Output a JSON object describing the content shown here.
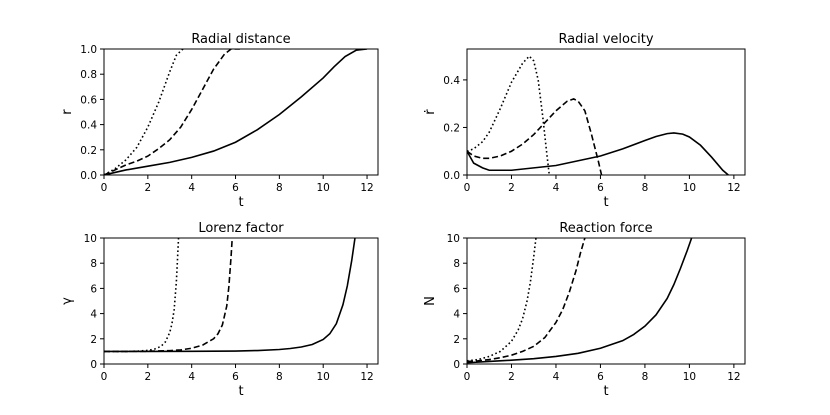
{
  "chart_data": [
    {
      "type": "line",
      "title": "Radial distance",
      "xlabel": "t",
      "ylabel": "r",
      "xlim": [
        0,
        12.5
      ],
      "ylim": [
        0,
        1.0
      ],
      "xticks": [
        "0",
        "2",
        "4",
        "6",
        "8",
        "10",
        "12"
      ],
      "yticks": [
        "0.0",
        "0.2",
        "0.4",
        "0.6",
        "0.8",
        "1.0"
      ],
      "series": [
        {
          "name": "solid",
          "dash": "solid",
          "x": [
            0,
            1,
            2,
            3,
            4,
            5,
            6,
            7,
            8,
            9,
            10,
            10.5,
            11,
            11.5,
            12
          ],
          "y": [
            0,
            0.04,
            0.07,
            0.1,
            0.14,
            0.19,
            0.26,
            0.36,
            0.48,
            0.62,
            0.77,
            0.86,
            0.94,
            0.99,
            1.0
          ]
        },
        {
          "name": "dashed",
          "dash": "dashed",
          "x": [
            0,
            0.5,
            1,
            1.5,
            2,
            2.5,
            3,
            3.5,
            4,
            4.5,
            5,
            5.5,
            5.8,
            6.2
          ],
          "y": [
            0,
            0.04,
            0.08,
            0.11,
            0.15,
            0.21,
            0.28,
            0.38,
            0.52,
            0.68,
            0.84,
            0.96,
            1.0,
            1.0
          ]
        },
        {
          "name": "dotted",
          "dash": "dotted",
          "x": [
            0,
            0.5,
            1,
            1.5,
            2,
            2.5,
            3,
            3.3,
            3.6
          ],
          "y": [
            0,
            0.05,
            0.12,
            0.22,
            0.38,
            0.58,
            0.82,
            0.95,
            1.0
          ]
        }
      ]
    },
    {
      "type": "line",
      "title": "Radial velocity",
      "xlabel": "t",
      "ylabel": "ṙ",
      "xlim": [
        0,
        12.5
      ],
      "ylim": [
        0,
        0.53
      ],
      "xticks": [
        "0",
        "2",
        "4",
        "6",
        "8",
        "10",
        "12"
      ],
      "yticks": [
        "0.0",
        "0.2",
        "0.4"
      ],
      "series": [
        {
          "name": "solid",
          "dash": "solid",
          "x": [
            0,
            0.3,
            0.7,
            1,
            1.5,
            2,
            3,
            4,
            5,
            6,
            7,
            8,
            8.5,
            9,
            9.3,
            9.7,
            10,
            10.5,
            11,
            11.5,
            11.75
          ],
          "y": [
            0.1,
            0.05,
            0.03,
            0.02,
            0.02,
            0.02,
            0.03,
            0.04,
            0.06,
            0.08,
            0.11,
            0.145,
            0.162,
            0.174,
            0.177,
            0.172,
            0.16,
            0.125,
            0.075,
            0.02,
            0
          ]
        },
        {
          "name": "dashed",
          "dash": "dashed",
          "x": [
            0,
            0.3,
            0.7,
            1,
            1.5,
            2,
            2.5,
            3,
            3.5,
            4,
            4.5,
            4.8,
            5,
            5.3,
            5.6,
            5.9,
            6.05
          ],
          "y": [
            0.1,
            0.08,
            0.07,
            0.07,
            0.08,
            0.1,
            0.13,
            0.17,
            0.22,
            0.27,
            0.31,
            0.32,
            0.31,
            0.27,
            0.17,
            0.06,
            0
          ]
        },
        {
          "name": "dotted",
          "dash": "dotted",
          "x": [
            0,
            0.3,
            0.7,
            1,
            1.5,
            2,
            2.5,
            2.8,
            3,
            3.2,
            3.4,
            3.6,
            3.7
          ],
          "y": [
            0.1,
            0.11,
            0.14,
            0.18,
            0.28,
            0.39,
            0.47,
            0.5,
            0.48,
            0.4,
            0.25,
            0.08,
            0
          ]
        }
      ]
    },
    {
      "type": "line",
      "title": "Lorenz factor",
      "xlabel": "t",
      "ylabel": "γ",
      "xlim": [
        0,
        12.5
      ],
      "ylim": [
        0,
        10
      ],
      "xticks": [
        "0",
        "2",
        "4",
        "6",
        "8",
        "10",
        "12"
      ],
      "yticks": [
        "0",
        "2",
        "4",
        "6",
        "8",
        "10"
      ],
      "series": [
        {
          "name": "solid",
          "dash": "solid",
          "x": [
            0,
            2,
            4,
            6,
            7,
            8,
            8.5,
            9,
            9.5,
            10,
            10.3,
            10.6,
            10.9,
            11.1,
            11.3,
            11.4,
            11.45
          ],
          "y": [
            1,
            1,
            1.01,
            1.03,
            1.07,
            1.15,
            1.23,
            1.35,
            1.55,
            1.95,
            2.4,
            3.2,
            4.7,
            6.2,
            8.2,
            9.4,
            10
          ]
        },
        {
          "name": "dashed",
          "dash": "dashed",
          "x": [
            0,
            1,
            2,
            3,
            3.5,
            4,
            4.5,
            5,
            5.2,
            5.4,
            5.6,
            5.7,
            5.8,
            5.85
          ],
          "y": [
            1,
            1,
            1.01,
            1.06,
            1.12,
            1.25,
            1.5,
            2.0,
            2.4,
            3.1,
            4.6,
            6.2,
            8.6,
            10
          ]
        },
        {
          "name": "dotted",
          "dash": "dotted",
          "x": [
            0,
            1,
            1.5,
            2,
            2.3,
            2.6,
            2.8,
            3.0,
            3.1,
            3.2,
            3.3,
            3.35,
            3.4
          ],
          "y": [
            1,
            1,
            1.02,
            1.08,
            1.18,
            1.4,
            1.75,
            2.5,
            3.2,
            4.3,
            6.5,
            8.2,
            10
          ]
        }
      ]
    },
    {
      "type": "line",
      "title": "Reaction force",
      "xlabel": "t",
      "ylabel": "N",
      "xlim": [
        0,
        12.5
      ],
      "ylim": [
        0,
        10
      ],
      "xticks": [
        "0",
        "2",
        "4",
        "6",
        "8",
        "10",
        "12"
      ],
      "yticks": [
        "0",
        "2",
        "4",
        "6",
        "8",
        "10"
      ],
      "series": [
        {
          "name": "solid",
          "dash": "solid",
          "x": [
            0,
            1,
            2,
            3,
            4,
            5,
            6,
            7,
            7.5,
            8,
            8.5,
            9,
            9.3,
            9.6,
            9.9,
            10.1
          ],
          "y": [
            0.1,
            0.2,
            0.3,
            0.42,
            0.6,
            0.85,
            1.25,
            1.85,
            2.35,
            3.0,
            3.9,
            5.2,
            6.3,
            7.6,
            9.0,
            10
          ]
        },
        {
          "name": "dashed",
          "dash": "dashed",
          "x": [
            0,
            0.5,
            1,
            1.5,
            2,
            2.5,
            3,
            3.5,
            4,
            4.3,
            4.6,
            4.9,
            5.1,
            5.3
          ],
          "y": [
            0.2,
            0.25,
            0.35,
            0.5,
            0.7,
            1.0,
            1.4,
            2.1,
            3.3,
            4.3,
            5.7,
            7.4,
            8.8,
            10
          ]
        },
        {
          "name": "dotted",
          "dash": "dotted",
          "x": [
            0,
            0.5,
            1,
            1.5,
            2,
            2.3,
            2.5,
            2.7,
            2.85,
            3.0,
            3.1
          ],
          "y": [
            0.25,
            0.35,
            0.6,
            1.0,
            1.8,
            2.7,
            3.6,
            5.0,
            6.5,
            8.5,
            10
          ]
        }
      ]
    }
  ]
}
